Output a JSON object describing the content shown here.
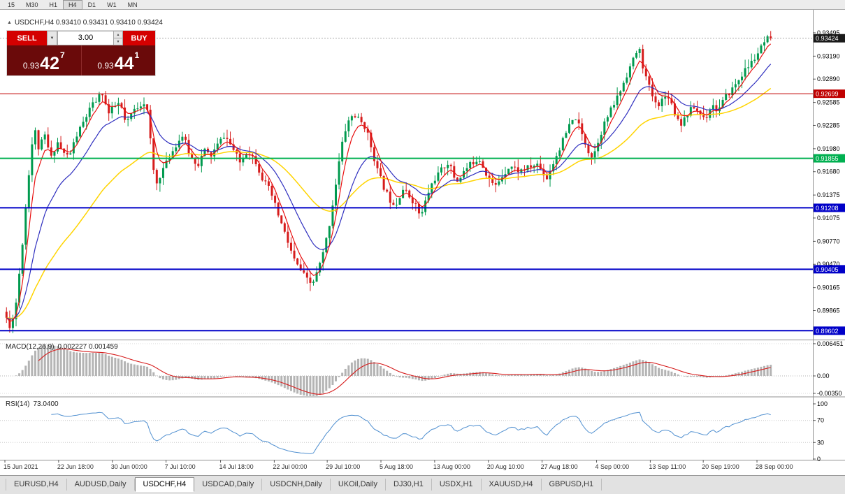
{
  "toolbar": {
    "timeframes": [
      "15",
      "M30",
      "H1",
      "H4",
      "D1",
      "W1",
      "MN"
    ],
    "active_index": 3
  },
  "chart": {
    "header": {
      "icon": "▲",
      "title": "USDCHF,H4 0.93410 0.93431 0.93410 0.93424"
    }
  },
  "trade_panel": {
    "sell_label": "SELL",
    "buy_label": "BUY",
    "volume": "3.00",
    "dropdown_icon": "▼",
    "step_up_icon": "▲",
    "step_down_icon": "▼",
    "sell_price": {
      "prefix": "0.93",
      "main": "42",
      "sup": "7"
    },
    "buy_price": {
      "prefix": "0.93",
      "main": "44",
      "sup": "1"
    }
  },
  "tabs": {
    "items": [
      "EURUSD,H4",
      "AUDUSD,Daily",
      "USDCHF,H4",
      "USDCAD,Daily",
      "USDCNH,Daily",
      "UKOil,Daily",
      "DJ30,H1",
      "USDX,H1",
      "XAUUSD,H4",
      "GBPUSD,H1"
    ],
    "active_index": 2
  },
  "chart_data": {
    "type": "candlestick",
    "symbol": "USDCHF",
    "timeframe": "H4",
    "current_ohlc": {
      "open": 0.9341,
      "high": 0.93431,
      "low": 0.9341,
      "close": 0.93424
    },
    "current_price": 0.93424,
    "y_axis": {
      "top_price": 0.93796,
      "bottom_price": 0.89486,
      "ticks": [
        "0.93495",
        "0.93190",
        "0.92890",
        "0.92585",
        "0.92285",
        "0.91980",
        "0.91680",
        "0.91375",
        "0.91075",
        "0.90770",
        "0.90470",
        "0.90165",
        "0.89865"
      ]
    },
    "levels": [
      {
        "price": 0.92699,
        "color": "#c00000",
        "width": 1,
        "label": "0.92699"
      },
      {
        "price": 0.91855,
        "color": "#00b050",
        "width": 2,
        "label": "0.91855"
      },
      {
        "price": 0.91208,
        "color": "#0000c8",
        "width": 2,
        "label": "0.91208"
      },
      {
        "price": 0.90405,
        "color": "#0000c8",
        "width": 2,
        "label": "0.90405"
      },
      {
        "price": 0.89602,
        "color": "#0000c8",
        "width": 2,
        "label": "0.89602"
      }
    ],
    "candles": {
      "count": 240,
      "body_width": 3
    },
    "price_path": [
      [
        0.0,
        0.8985
      ],
      [
        0.006,
        0.8962
      ],
      [
        0.014,
        0.8992
      ],
      [
        0.022,
        0.9065
      ],
      [
        0.03,
        0.9155
      ],
      [
        0.038,
        0.9228
      ],
      [
        0.044,
        0.9198
      ],
      [
        0.052,
        0.9215
      ],
      [
        0.06,
        0.9185
      ],
      [
        0.068,
        0.9208
      ],
      [
        0.076,
        0.9192
      ],
      [
        0.084,
        0.9188
      ],
      [
        0.092,
        0.9212
      ],
      [
        0.102,
        0.9232
      ],
      [
        0.112,
        0.9252
      ],
      [
        0.122,
        0.9265
      ],
      [
        0.128,
        0.9272
      ],
      [
        0.134,
        0.9242
      ],
      [
        0.142,
        0.9252
      ],
      [
        0.15,
        0.9258
      ],
      [
        0.158,
        0.9228
      ],
      [
        0.166,
        0.9246
      ],
      [
        0.176,
        0.9256
      ],
      [
        0.184,
        0.926
      ],
      [
        0.19,
        0.9205
      ],
      [
        0.196,
        0.9148
      ],
      [
        0.204,
        0.9168
      ],
      [
        0.212,
        0.9182
      ],
      [
        0.222,
        0.9202
      ],
      [
        0.232,
        0.9216
      ],
      [
        0.242,
        0.9186
      ],
      [
        0.252,
        0.9178
      ],
      [
        0.26,
        0.9196
      ],
      [
        0.268,
        0.9188
      ],
      [
        0.276,
        0.9201
      ],
      [
        0.286,
        0.9216
      ],
      [
        0.296,
        0.92
      ],
      [
        0.306,
        0.918
      ],
      [
        0.316,
        0.9196
      ],
      [
        0.326,
        0.9184
      ],
      [
        0.336,
        0.9158
      ],
      [
        0.346,
        0.9142
      ],
      [
        0.354,
        0.9118
      ],
      [
        0.362,
        0.9095
      ],
      [
        0.37,
        0.9072
      ],
      [
        0.378,
        0.905
      ],
      [
        0.386,
        0.9038
      ],
      [
        0.394,
        0.9026
      ],
      [
        0.4,
        0.902
      ],
      [
        0.406,
        0.9034
      ],
      [
        0.414,
        0.9058
      ],
      [
        0.422,
        0.9094
      ],
      [
        0.43,
        0.9144
      ],
      [
        0.438,
        0.9198
      ],
      [
        0.446,
        0.9232
      ],
      [
        0.454,
        0.9243
      ],
      [
        0.462,
        0.9235
      ],
      [
        0.47,
        0.9226
      ],
      [
        0.478,
        0.9198
      ],
      [
        0.486,
        0.9168
      ],
      [
        0.494,
        0.9147
      ],
      [
        0.502,
        0.9131
      ],
      [
        0.51,
        0.9126
      ],
      [
        0.518,
        0.9146
      ],
      [
        0.526,
        0.9137
      ],
      [
        0.534,
        0.9127
      ],
      [
        0.542,
        0.9108
      ],
      [
        0.55,
        0.9136
      ],
      [
        0.558,
        0.9156
      ],
      [
        0.568,
        0.9169
      ],
      [
        0.578,
        0.9181
      ],
      [
        0.588,
        0.9154
      ],
      [
        0.598,
        0.9168
      ],
      [
        0.608,
        0.9179
      ],
      [
        0.618,
        0.9186
      ],
      [
        0.628,
        0.9164
      ],
      [
        0.638,
        0.9147
      ],
      [
        0.648,
        0.9163
      ],
      [
        0.658,
        0.9176
      ],
      [
        0.67,
        0.9169
      ],
      [
        0.682,
        0.9173
      ],
      [
        0.694,
        0.9178
      ],
      [
        0.706,
        0.9159
      ],
      [
        0.716,
        0.9183
      ],
      [
        0.726,
        0.9206
      ],
      [
        0.736,
        0.9229
      ],
      [
        0.744,
        0.9239
      ],
      [
        0.752,
        0.9216
      ],
      [
        0.76,
        0.9196
      ],
      [
        0.766,
        0.9186
      ],
      [
        0.774,
        0.9212
      ],
      [
        0.782,
        0.9233
      ],
      [
        0.792,
        0.9253
      ],
      [
        0.802,
        0.9274
      ],
      [
        0.812,
        0.9299
      ],
      [
        0.82,
        0.9317
      ],
      [
        0.826,
        0.9331
      ],
      [
        0.833,
        0.9298
      ],
      [
        0.841,
        0.9274
      ],
      [
        0.849,
        0.9254
      ],
      [
        0.857,
        0.9263
      ],
      [
        0.865,
        0.9268
      ],
      [
        0.873,
        0.9244
      ],
      [
        0.881,
        0.9231
      ],
      [
        0.889,
        0.9243
      ],
      [
        0.897,
        0.9253
      ],
      [
        0.905,
        0.9245
      ],
      [
        0.913,
        0.9237
      ],
      [
        0.921,
        0.9257
      ],
      [
        0.929,
        0.9247
      ],
      [
        0.937,
        0.9262
      ],
      [
        0.945,
        0.9273
      ],
      [
        0.953,
        0.9283
      ],
      [
        0.961,
        0.9296
      ],
      [
        0.969,
        0.9306
      ],
      [
        0.977,
        0.9316
      ],
      [
        0.985,
        0.9329
      ],
      [
        0.993,
        0.9341
      ],
      [
        1.0,
        0.93424
      ]
    ],
    "x_labels": [
      {
        "f": 0.0,
        "label": "15 Jun 2021"
      },
      {
        "f": 0.07,
        "label": "22 Jun 18:00"
      },
      {
        "f": 0.14,
        "label": "30 Jun 00:00"
      },
      {
        "f": 0.21,
        "label": "7 Jul 10:00"
      },
      {
        "f": 0.281,
        "label": "14 Jul 18:00"
      },
      {
        "f": 0.351,
        "label": "22 Jul 00:00"
      },
      {
        "f": 0.42,
        "label": "29 Jul 10:00"
      },
      {
        "f": 0.49,
        "label": "5 Aug 18:00"
      },
      {
        "f": 0.56,
        "label": "13 Aug 00:00"
      },
      {
        "f": 0.63,
        "label": "20 Aug 10:00"
      },
      {
        "f": 0.7,
        "label": "27 Aug 18:00"
      },
      {
        "f": 0.771,
        "label": "4 Sep 00:00"
      },
      {
        "f": 0.841,
        "label": "13 Sep 11:00"
      },
      {
        "f": 0.91,
        "label": "20 Sep 19:00"
      },
      {
        "f": 0.98,
        "label": "28 Sep 00:00"
      }
    ],
    "indicators": {
      "macd": {
        "label": "MACD(12,26,9)",
        "values": "0.002227 0.001459",
        "axis_top": 0.007,
        "axis_bottom": -0.00406,
        "ticks": [
          {
            "value": 0.006451,
            "label": "0.006451"
          },
          {
            "value": 0,
            "label": "0.00"
          },
          {
            "value": -0.0035,
            "label": "-0.00350"
          }
        ]
      },
      "rsi": {
        "label": "RSI(14)",
        "value": "73.0400",
        "axis_top": 111.4,
        "axis_bottom": -1.3,
        "guides": [
          70,
          30
        ],
        "ticks": [
          {
            "value": 100,
            "label": "100"
          },
          {
            "value": 70,
            "label": "70"
          },
          {
            "value": 30,
            "label": "30"
          },
          {
            "value": 0,
            "label": "0"
          }
        ]
      }
    },
    "colors": {
      "up": "#009a4e",
      "down": "#d61c1c",
      "ma_fast": "#e81010",
      "ma_mid": "#2f2fbf",
      "ma_slow": "#ffd400",
      "macd_hist": "#b4b4b4",
      "macd_signal": "#d61c1c",
      "rsi_line": "#4f8fd0",
      "badge_current_bg": "#1a1a1a",
      "current_price_line": "#aaaaaa"
    }
  }
}
